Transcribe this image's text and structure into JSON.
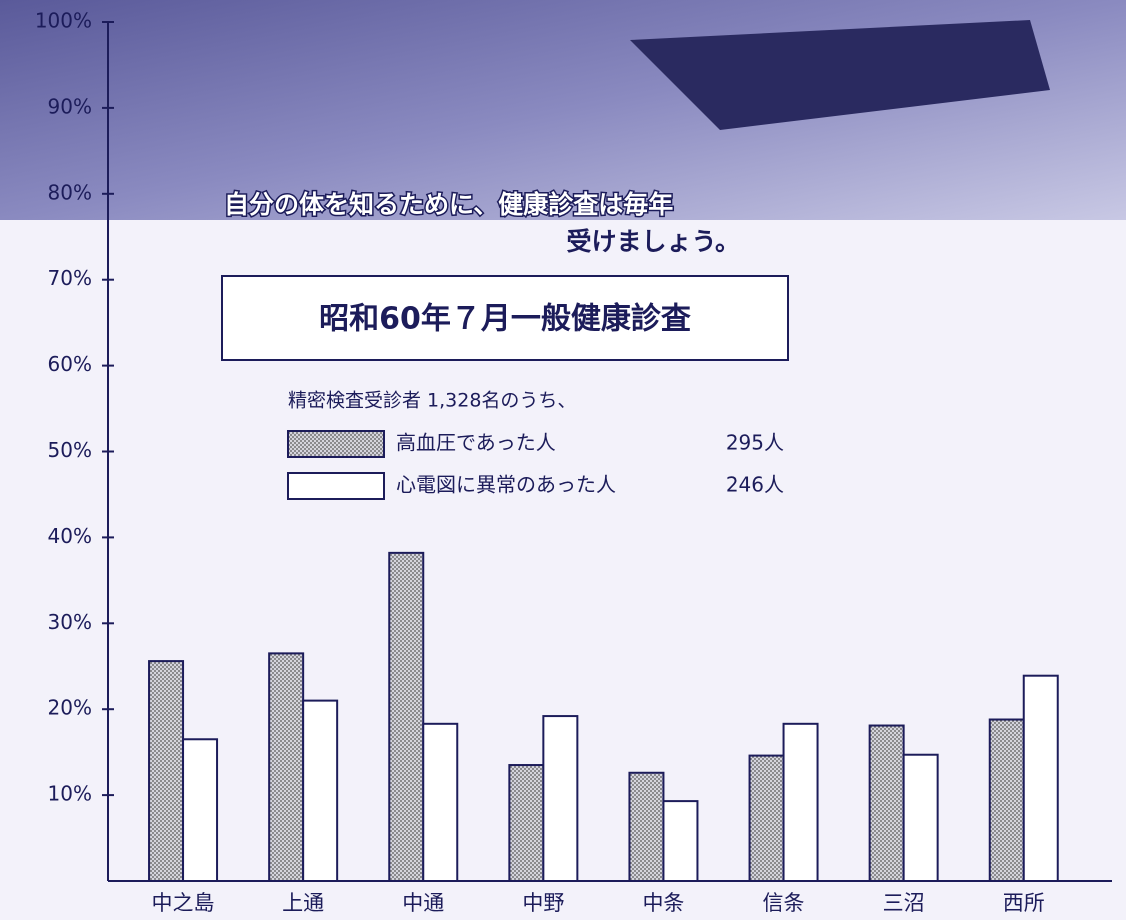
{
  "chart_data": {
    "type": "bar",
    "caption_lines": [
      "自分の体を知るために、健康診査は毎年",
      "受けましょう。"
    ],
    "title": "昭和60年７月一般健康診査",
    "subtitle": "精密検査受診者 1,328名のうち、",
    "categories": [
      "中之島",
      "上通",
      "中通",
      "中野",
      "中条",
      "信条",
      "三沼",
      "西所"
    ],
    "series": [
      {
        "name": "高血圧であった人",
        "note": "295人",
        "color": "#b8b8c4",
        "values": [
          25.6,
          26.5,
          38.2,
          13.5,
          12.6,
          14.6,
          18.1,
          18.8
        ]
      },
      {
        "name": "心電図に異常のあった人",
        "note": "246人",
        "color": "#ffffff",
        "values": [
          16.5,
          21,
          18.3,
          19.2,
          9.3,
          18.3,
          14.7,
          23.9
        ]
      }
    ],
    "ylim": [
      0,
      100
    ],
    "yticks": [
      {
        "value": 10,
        "label": "10%"
      },
      {
        "value": 20,
        "label": "20%"
      },
      {
        "value": 30,
        "label": "30%"
      },
      {
        "value": 40,
        "label": "40%"
      },
      {
        "value": 50,
        "label": "50%"
      },
      {
        "value": 60,
        "label": "60%"
      },
      {
        "value": 70,
        "label": "70%"
      },
      {
        "value": 80,
        "label": "80%"
      },
      {
        "value": 90,
        "label": "90%"
      },
      {
        "value": 100,
        "label": "100%"
      }
    ]
  }
}
